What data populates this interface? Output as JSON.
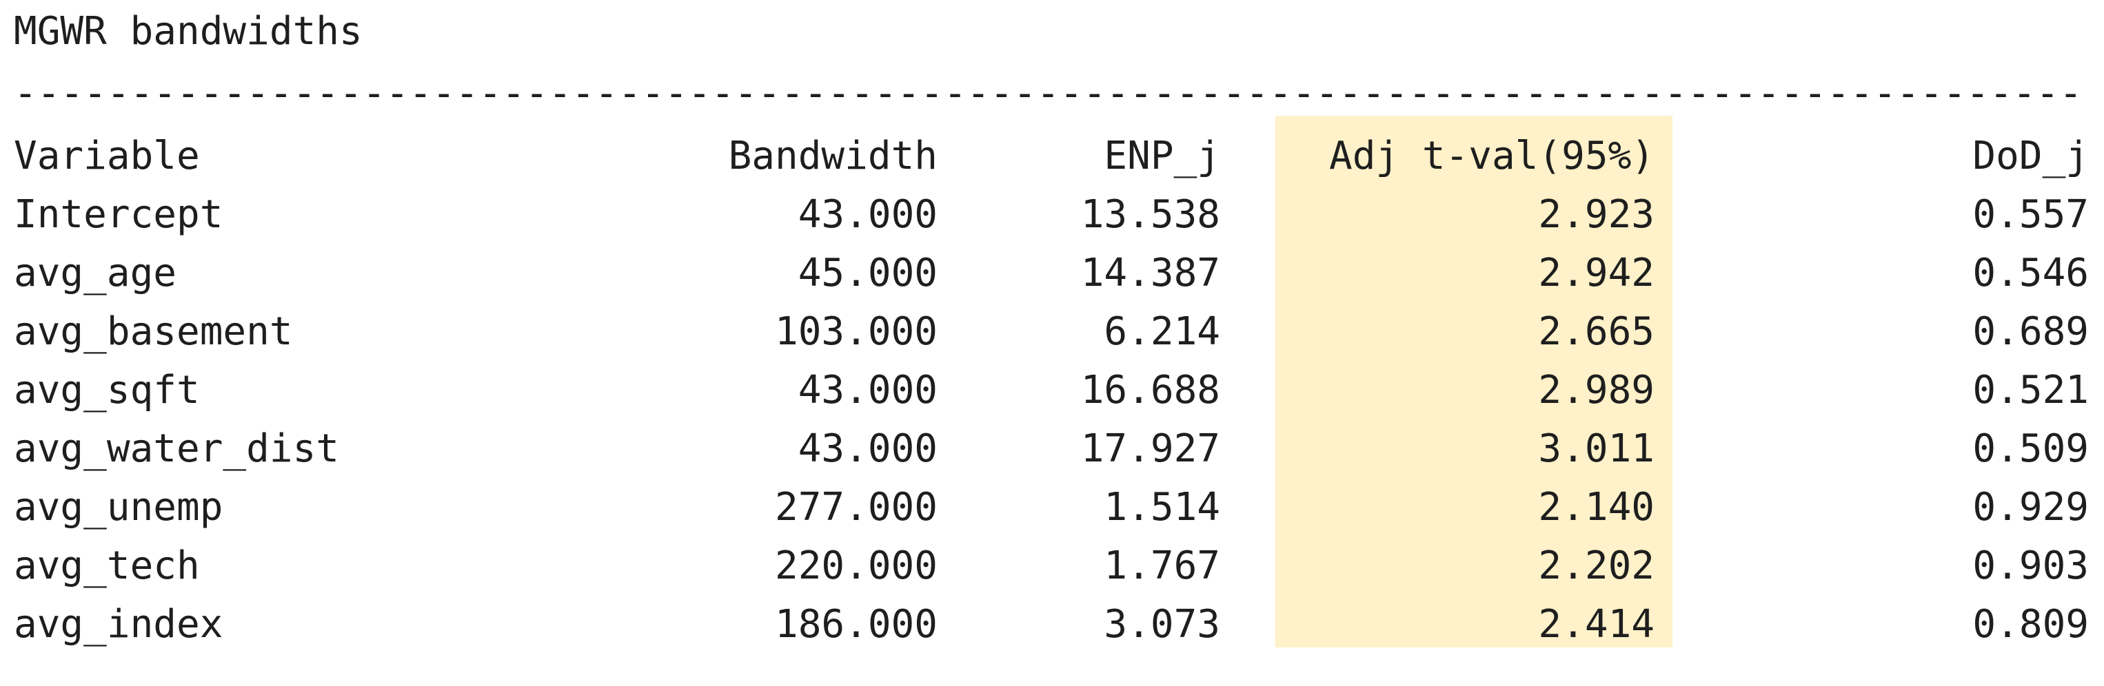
{
  "title": "MGWR bandwidths",
  "separator": "---------------------------------------------------------------------------------------------------------------------------------------------------------",
  "columns": {
    "variable": "Variable",
    "bandwidth": "Bandwidth",
    "enp": "ENP_j",
    "adj_tval": "Adj t-val(95%)",
    "dod": "DoD_j"
  },
  "highlight_color": "#fff1c9",
  "rows": [
    {
      "variable": "Intercept",
      "bandwidth": "43.000",
      "enp": "13.538",
      "adj_tval": "2.923",
      "dod": "0.557"
    },
    {
      "variable": "avg_age",
      "bandwidth": "45.000",
      "enp": "14.387",
      "adj_tval": "2.942",
      "dod": "0.546"
    },
    {
      "variable": "avg_basement",
      "bandwidth": "103.000",
      "enp": "6.214",
      "adj_tval": "2.665",
      "dod": "0.689"
    },
    {
      "variable": "avg_sqft",
      "bandwidth": "43.000",
      "enp": "16.688",
      "adj_tval": "2.989",
      "dod": "0.521"
    },
    {
      "variable": "avg_water_dist",
      "bandwidth": "43.000",
      "enp": "17.927",
      "adj_tval": "3.011",
      "dod": "0.509"
    },
    {
      "variable": "avg_unemp",
      "bandwidth": "277.000",
      "enp": "1.514",
      "adj_tval": "2.140",
      "dod": "0.929"
    },
    {
      "variable": "avg_tech",
      "bandwidth": "220.000",
      "enp": "1.767",
      "adj_tval": "2.202",
      "dod": "0.903"
    },
    {
      "variable": "avg_index",
      "bandwidth": "186.000",
      "enp": "3.073",
      "adj_tval": "2.414",
      "dod": "0.809"
    }
  ]
}
